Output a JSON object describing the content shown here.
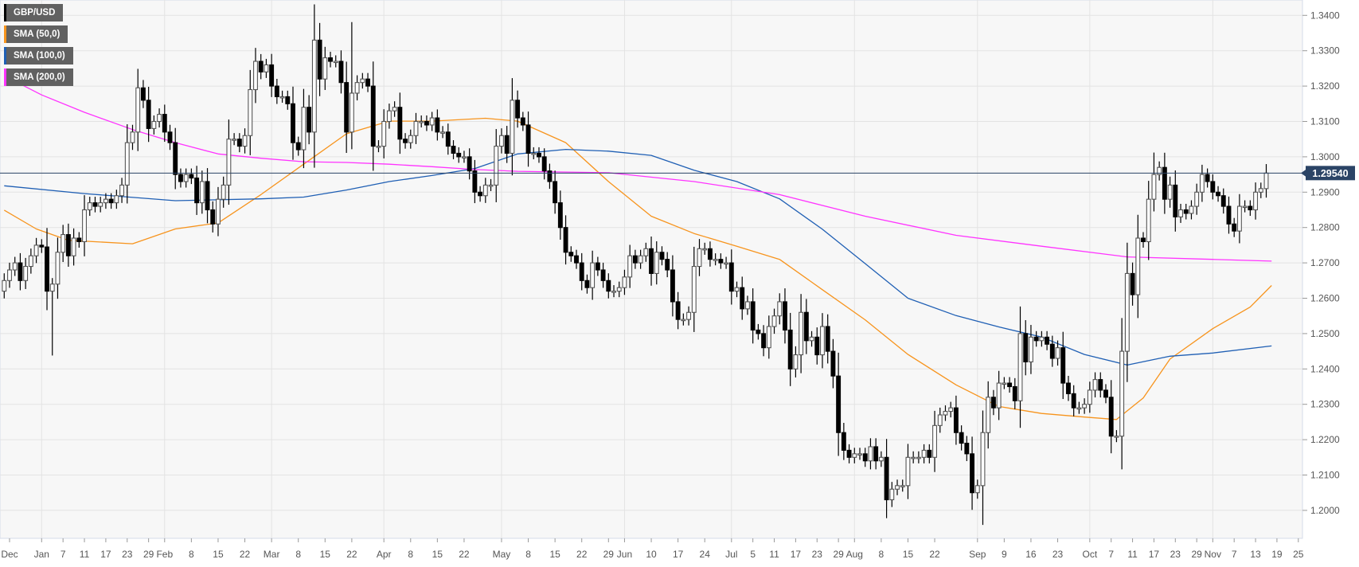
{
  "legend": [
    {
      "label": "GBP/USD",
      "color": "#000000"
    },
    {
      "label": "SMA (50,0)",
      "color": "#f7941d"
    },
    {
      "label": "SMA (100,0)",
      "color": "#1f5fb4"
    },
    {
      "label": "SMA (200,0)",
      "color": "#ff33ff"
    }
  ],
  "chart_data": {
    "type": "candlestick",
    "title": "GBP/USD",
    "x_unit": "trading-day index (0 = Jan 1)",
    "ylim": [
      1.19,
      1.345
    ],
    "y_ticks": [
      "1.2000",
      "1.2100",
      "1.2200",
      "1.2300",
      "1.2400",
      "1.2500",
      "1.2600",
      "1.2700",
      "1.2800",
      "1.2900",
      "1.3000",
      "1.3100",
      "1.3200",
      "1.3300",
      "1.3400"
    ],
    "x_ticks": [
      [
        -6,
        "Dec"
      ],
      [
        0,
        "Jan"
      ],
      [
        4,
        "7"
      ],
      [
        8,
        "11"
      ],
      [
        12,
        "17"
      ],
      [
        16,
        "23"
      ],
      [
        20,
        "29"
      ],
      [
        23,
        "Feb"
      ],
      [
        28,
        "8"
      ],
      [
        33,
        "15"
      ],
      [
        38,
        "22"
      ],
      [
        43,
        "Mar"
      ],
      [
        48,
        "8"
      ],
      [
        53,
        "15"
      ],
      [
        58,
        "22"
      ],
      [
        64,
        "Apr"
      ],
      [
        69,
        "8"
      ],
      [
        74,
        "15"
      ],
      [
        79,
        "22"
      ],
      [
        86,
        "May"
      ],
      [
        91,
        "8"
      ],
      [
        96,
        "15"
      ],
      [
        101,
        "22"
      ],
      [
        106,
        "29"
      ],
      [
        109,
        "Jun"
      ],
      [
        114,
        "10"
      ],
      [
        119,
        "17"
      ],
      [
        124,
        "24"
      ],
      [
        129,
        "Jul"
      ],
      [
        133,
        "5"
      ],
      [
        137,
        "11"
      ],
      [
        141,
        "17"
      ],
      [
        145,
        "23"
      ],
      [
        149,
        "29"
      ],
      [
        152,
        "Aug"
      ],
      [
        157,
        "8"
      ],
      [
        162,
        "15"
      ],
      [
        167,
        "22"
      ],
      [
        175,
        "Sep"
      ],
      [
        180,
        "9"
      ],
      [
        185,
        "16"
      ],
      [
        190,
        "23"
      ],
      [
        196,
        "Oct"
      ],
      [
        200,
        "7"
      ],
      [
        204,
        "11"
      ],
      [
        208,
        "17"
      ],
      [
        212,
        "23"
      ],
      [
        216,
        "29"
      ],
      [
        219,
        "Nov"
      ],
      [
        223,
        "7"
      ],
      [
        227,
        "13"
      ],
      [
        231,
        "19"
      ],
      [
        235,
        "25"
      ]
    ],
    "month_gridlines": [
      0,
      23,
      43,
      64,
      86,
      109,
      129,
      152,
      175,
      196,
      219
    ],
    "first_index": -7,
    "first_open": 1.262,
    "close": [
      1.265,
      1.268,
      1.27,
      1.265,
      1.269,
      1.272,
      1.275,
      1.2745,
      1.262,
      1.264,
      1.273,
      1.278,
      1.272,
      1.277,
      1.276,
      1.285,
      1.287,
      1.286,
      1.287,
      1.288,
      1.287,
      1.289,
      1.292,
      1.304,
      1.307,
      1.3195,
      1.316,
      1.308,
      1.31,
      1.312,
      1.307,
      1.304,
      1.295,
      1.293,
      1.295,
      1.294,
      1.287,
      1.293,
      1.285,
      1.281,
      1.288,
      1.292,
      1.305,
      1.305,
      1.303,
      1.306,
      1.319,
      1.327,
      1.324,
      1.326,
      1.32,
      1.317,
      1.317,
      1.315,
      1.304,
      1.302,
      1.314,
      1.307,
      1.333,
      1.322,
      1.328,
      1.327,
      1.327,
      1.321,
      1.307,
      1.318,
      1.321,
      1.322,
      1.32,
      1.303,
      1.303,
      1.31,
      1.313,
      1.314,
      1.305,
      1.304,
      1.306,
      1.31,
      1.31,
      1.309,
      1.311,
      1.307,
      1.307,
      1.303,
      1.301,
      1.3,
      1.3,
      1.296,
      1.29,
      1.289,
      1.292,
      1.292,
      1.303,
      1.306,
      1.301,
      1.316,
      1.311,
      1.309,
      1.301,
      1.301,
      1.3,
      1.296,
      1.293,
      1.287,
      1.28,
      1.273,
      1.272,
      1.27,
      1.265,
      1.263,
      1.27,
      1.268,
      1.265,
      1.262,
      1.262,
      1.263,
      1.266,
      1.272,
      1.27,
      1.272,
      1.274,
      1.267,
      1.273,
      1.271,
      1.268,
      1.259,
      1.254,
      1.254,
      1.256,
      1.269,
      1.274,
      1.274,
      1.271,
      1.271,
      1.27,
      1.27,
      1.262,
      1.263,
      1.257,
      1.259,
      1.251,
      1.25,
      1.246,
      1.252,
      1.255,
      1.259,
      1.251,
      1.24,
      1.244,
      1.256,
      1.248,
      1.249,
      1.244,
      1.252,
      1.245,
      1.238,
      1.222,
      1.217,
      1.215,
      1.216,
      1.216,
      1.214,
      1.218,
      1.214,
      1.215,
      1.203,
      1.206,
      1.207,
      1.207,
      1.215,
      1.215,
      1.215,
      1.217,
      1.215,
      1.224,
      1.227,
      1.228,
      1.229,
      1.222,
      1.219,
      1.216,
      1.205,
      1.207,
      1.222,
      1.232,
      1.229,
      1.236,
      1.236,
      1.235,
      1.231,
      1.25,
      1.242,
      1.249,
      1.248,
      1.249,
      1.247,
      1.243,
      1.246,
      1.236,
      1.233,
      1.229,
      1.229,
      1.23,
      1.234,
      1.237,
      1.234,
      1.232,
      1.221,
      1.221,
      1.245,
      1.267,
      1.261,
      1.277,
      1.276,
      1.288,
      1.295,
      1.297,
      1.288,
      1.292,
      1.283,
      1.285,
      1.284,
      1.286,
      1.29,
      1.295,
      1.293,
      1.29,
      1.289,
      1.286,
      1.281,
      1.279,
      1.286,
      1.286,
      1.285,
      1.29,
      1.291,
      1.2954
    ],
    "extremes": [
      {
        "index": 2,
        "low": 1.2438
      },
      {
        "index": 58,
        "high": 1.3381
      },
      {
        "index": 176,
        "low": 1.1959
      },
      {
        "index": 208,
        "high": 1.3012
      },
      {
        "index": 230,
        "high": 1.2985
      }
    ],
    "series": [
      {
        "name": "SMA (50,0)",
        "color": "#f7941d",
        "points": [
          [
            -7,
            1.2849
          ],
          [
            -1,
            1.2796
          ],
          [
            5,
            1.2764
          ],
          [
            17,
            1.2754
          ],
          [
            25,
            1.2796
          ],
          [
            33,
            1.2813
          ],
          [
            41,
            1.2893
          ],
          [
            49,
            1.2979
          ],
          [
            57,
            1.3065
          ],
          [
            65,
            1.3101
          ],
          [
            73,
            1.3101
          ],
          [
            83,
            1.3109
          ],
          [
            89,
            1.3101
          ],
          [
            98,
            1.304
          ],
          [
            106,
            1.293
          ],
          [
            114,
            1.2832
          ],
          [
            122,
            1.2783
          ],
          [
            130,
            1.2747
          ],
          [
            138,
            1.271
          ],
          [
            146,
            1.2624
          ],
          [
            154,
            1.2539
          ],
          [
            162,
            1.2441
          ],
          [
            171,
            1.2355
          ],
          [
            179,
            1.2294
          ],
          [
            187,
            1.2274
          ],
          [
            195,
            1.2264
          ],
          [
            201,
            1.2257
          ],
          [
            206,
            1.2318
          ],
          [
            211,
            1.2428
          ],
          [
            219,
            1.2514
          ],
          [
            226,
            1.2575
          ],
          [
            230,
            1.2636
          ]
        ]
      },
      {
        "name": "SMA (100,0)",
        "color": "#1f5fb4",
        "points": [
          [
            -7,
            1.2918
          ],
          [
            8,
            1.2896
          ],
          [
            25,
            1.2876
          ],
          [
            41,
            1.2881
          ],
          [
            49,
            1.2886
          ],
          [
            57,
            1.2906
          ],
          [
            65,
            1.293
          ],
          [
            73,
            1.2947
          ],
          [
            81,
            1.2967
          ],
          [
            89,
            1.3008
          ],
          [
            98,
            1.3021
          ],
          [
            106,
            1.3016
          ],
          [
            114,
            1.3004
          ],
          [
            122,
            1.2962
          ],
          [
            130,
            1.293
          ],
          [
            138,
            1.2881
          ],
          [
            146,
            1.2795
          ],
          [
            154,
            1.2698
          ],
          [
            162,
            1.26
          ],
          [
            171,
            1.2551
          ],
          [
            179,
            1.2519
          ],
          [
            187,
            1.249
          ],
          [
            195,
            1.2441
          ],
          [
            203,
            1.2411
          ],
          [
            211,
            1.2436
          ],
          [
            219,
            1.2445
          ],
          [
            230,
            1.2465
          ]
        ]
      },
      {
        "name": "SMA (200,0)",
        "color": "#ff33ff",
        "points": [
          [
            -7,
            1.3229
          ],
          [
            0,
            1.3175
          ],
          [
            8,
            1.3126
          ],
          [
            17,
            1.3077
          ],
          [
            25,
            1.304
          ],
          [
            33,
            1.3008
          ],
          [
            41,
            1.2996
          ],
          [
            49,
            1.2986
          ],
          [
            57,
            1.2984
          ],
          [
            65,
            1.2979
          ],
          [
            73,
            1.2972
          ],
          [
            81,
            1.2964
          ],
          [
            89,
            1.2959
          ],
          [
            106,
            1.2955
          ],
          [
            122,
            1.293
          ],
          [
            138,
            1.2893
          ],
          [
            154,
            1.2832
          ],
          [
            171,
            1.2778
          ],
          [
            187,
            1.2747
          ],
          [
            203,
            1.2717
          ],
          [
            219,
            1.271
          ],
          [
            230,
            1.2705
          ]
        ]
      }
    ],
    "current_price": {
      "value": 1.2954,
      "label": "1.29540",
      "color": "#2b4466"
    }
  }
}
